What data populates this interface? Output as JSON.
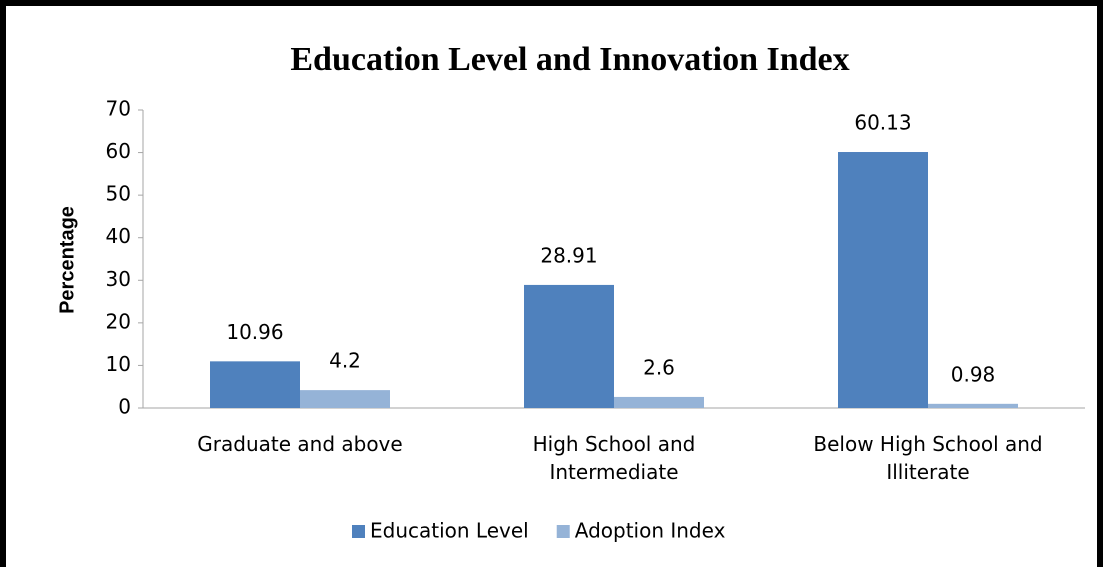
{
  "chart_data": {
    "type": "bar",
    "title": "Education Level and Innovation Index",
    "ylabel": "Percentage",
    "categories": [
      "Graduate and above",
      "High School and Intermediate",
      "Below High School and Illiterate"
    ],
    "series": [
      {
        "name": "Education Level",
        "color": "#4f81bd",
        "values": [
          10.96,
          28.91,
          60.13
        ]
      },
      {
        "name": "Adoption Index",
        "color": "#95b3d7",
        "values": [
          4.2,
          2.6,
          0.98
        ]
      }
    ],
    "ylim": [
      0,
      70
    ],
    "yticks": [
      0,
      10,
      20,
      30,
      40,
      50,
      60,
      70
    ],
    "grid": false,
    "legend": "bottom"
  }
}
